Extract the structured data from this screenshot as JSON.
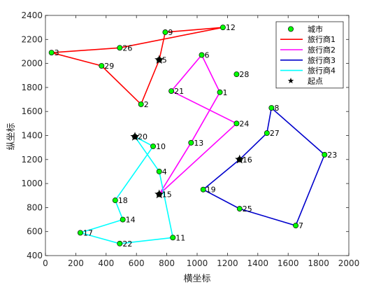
{
  "chart_data": {
    "type": "line",
    "xlabel": "横坐标",
    "ylabel": "纵坐标",
    "xlim": [
      0,
      2000
    ],
    "ylim": [
      400,
      2400
    ],
    "xticks": [
      "0",
      "200",
      "400",
      "600",
      "800",
      "1000",
      "1200",
      "1400",
      "1600",
      "1800",
      "2000"
    ],
    "yticks": [
      "400",
      "600",
      "800",
      "1000",
      "1200",
      "1400",
      "1600",
      "1800",
      "2000",
      "2200",
      "2400"
    ],
    "grid": false,
    "legend_position": "top-right",
    "legend": {
      "cities": "城市",
      "start": "起点"
    },
    "cities": [
      {
        "label": "2",
        "x": 630,
        "y": 1660
      },
      {
        "label": "3",
        "x": 40,
        "y": 2090
      },
      {
        "label": "4",
        "x": 750,
        "y": 1100
      },
      {
        "label": "5",
        "x": 750,
        "y": 2030
      },
      {
        "label": "6",
        "x": 1030,
        "y": 2070
      },
      {
        "label": "7",
        "x": 1650,
        "y": 650
      },
      {
        "label": "8",
        "x": 1490,
        "y": 1630
      },
      {
        "label": "9",
        "x": 790,
        "y": 2260
      },
      {
        "label": "10",
        "x": 710,
        "y": 1310
      },
      {
        "label": "11",
        "x": 840,
        "y": 550
      },
      {
        "label": "12",
        "x": 1170,
        "y": 2300
      },
      {
        "label": "13",
        "x": 960,
        "y": 1340
      },
      {
        "label": "14",
        "x": 510,
        "y": 700
      },
      {
        "label": "15",
        "x": 750,
        "y": 910
      },
      {
        "label": "16",
        "x": 1280,
        "y": 1200
      },
      {
        "label": "17",
        "x": 230,
        "y": 590
      },
      {
        "label": "18",
        "x": 460,
        "y": 860
      },
      {
        "label": "19",
        "x": 1040,
        "y": 950
      },
      {
        "label": "20",
        "x": 590,
        "y": 1390
      },
      {
        "label": "21",
        "x": 830,
        "y": 1770
      },
      {
        "label": "22",
        "x": 490,
        "y": 500
      },
      {
        "label": "23",
        "x": 1840,
        "y": 1240
      },
      {
        "label": "24",
        "x": 1260,
        "y": 1500
      },
      {
        "label": "25",
        "x": 1280,
        "y": 790
      },
      {
        "label": "26",
        "x": 490,
        "y": 2130
      },
      {
        "label": "27",
        "x": 1460,
        "y": 1420
      },
      {
        "label": "28",
        "x": 1260,
        "y": 1910
      },
      {
        "label": "29",
        "x": 370,
        "y": 1980
      },
      {
        "label": "1",
        "x": 1150,
        "y": 1760
      }
    ],
    "series": [
      {
        "name": "旅行商1",
        "color": "#ff0000",
        "route": [
          "5",
          "2",
          "29",
          "3",
          "26",
          "12",
          "9",
          "5"
        ]
      },
      {
        "name": "旅行商2",
        "color": "#ff00ff",
        "route": [
          "15",
          "13",
          "1",
          "6",
          "21",
          "24",
          "15"
        ]
      },
      {
        "name": "旅行商3",
        "color": "#0000cc",
        "route": [
          "16",
          "27",
          "8",
          "23",
          "7",
          "25",
          "19",
          "16"
        ]
      },
      {
        "name": "旅行商4",
        "color": "#00ffff",
        "route": [
          "20",
          "10",
          "18",
          "14",
          "17",
          "22",
          "11",
          "4",
          "20"
        ]
      }
    ],
    "starts": [
      {
        "x": 750,
        "y": 2030
      },
      {
        "x": 750,
        "y": 910
      },
      {
        "x": 1280,
        "y": 1200
      },
      {
        "x": 590,
        "y": 1390
      }
    ]
  }
}
